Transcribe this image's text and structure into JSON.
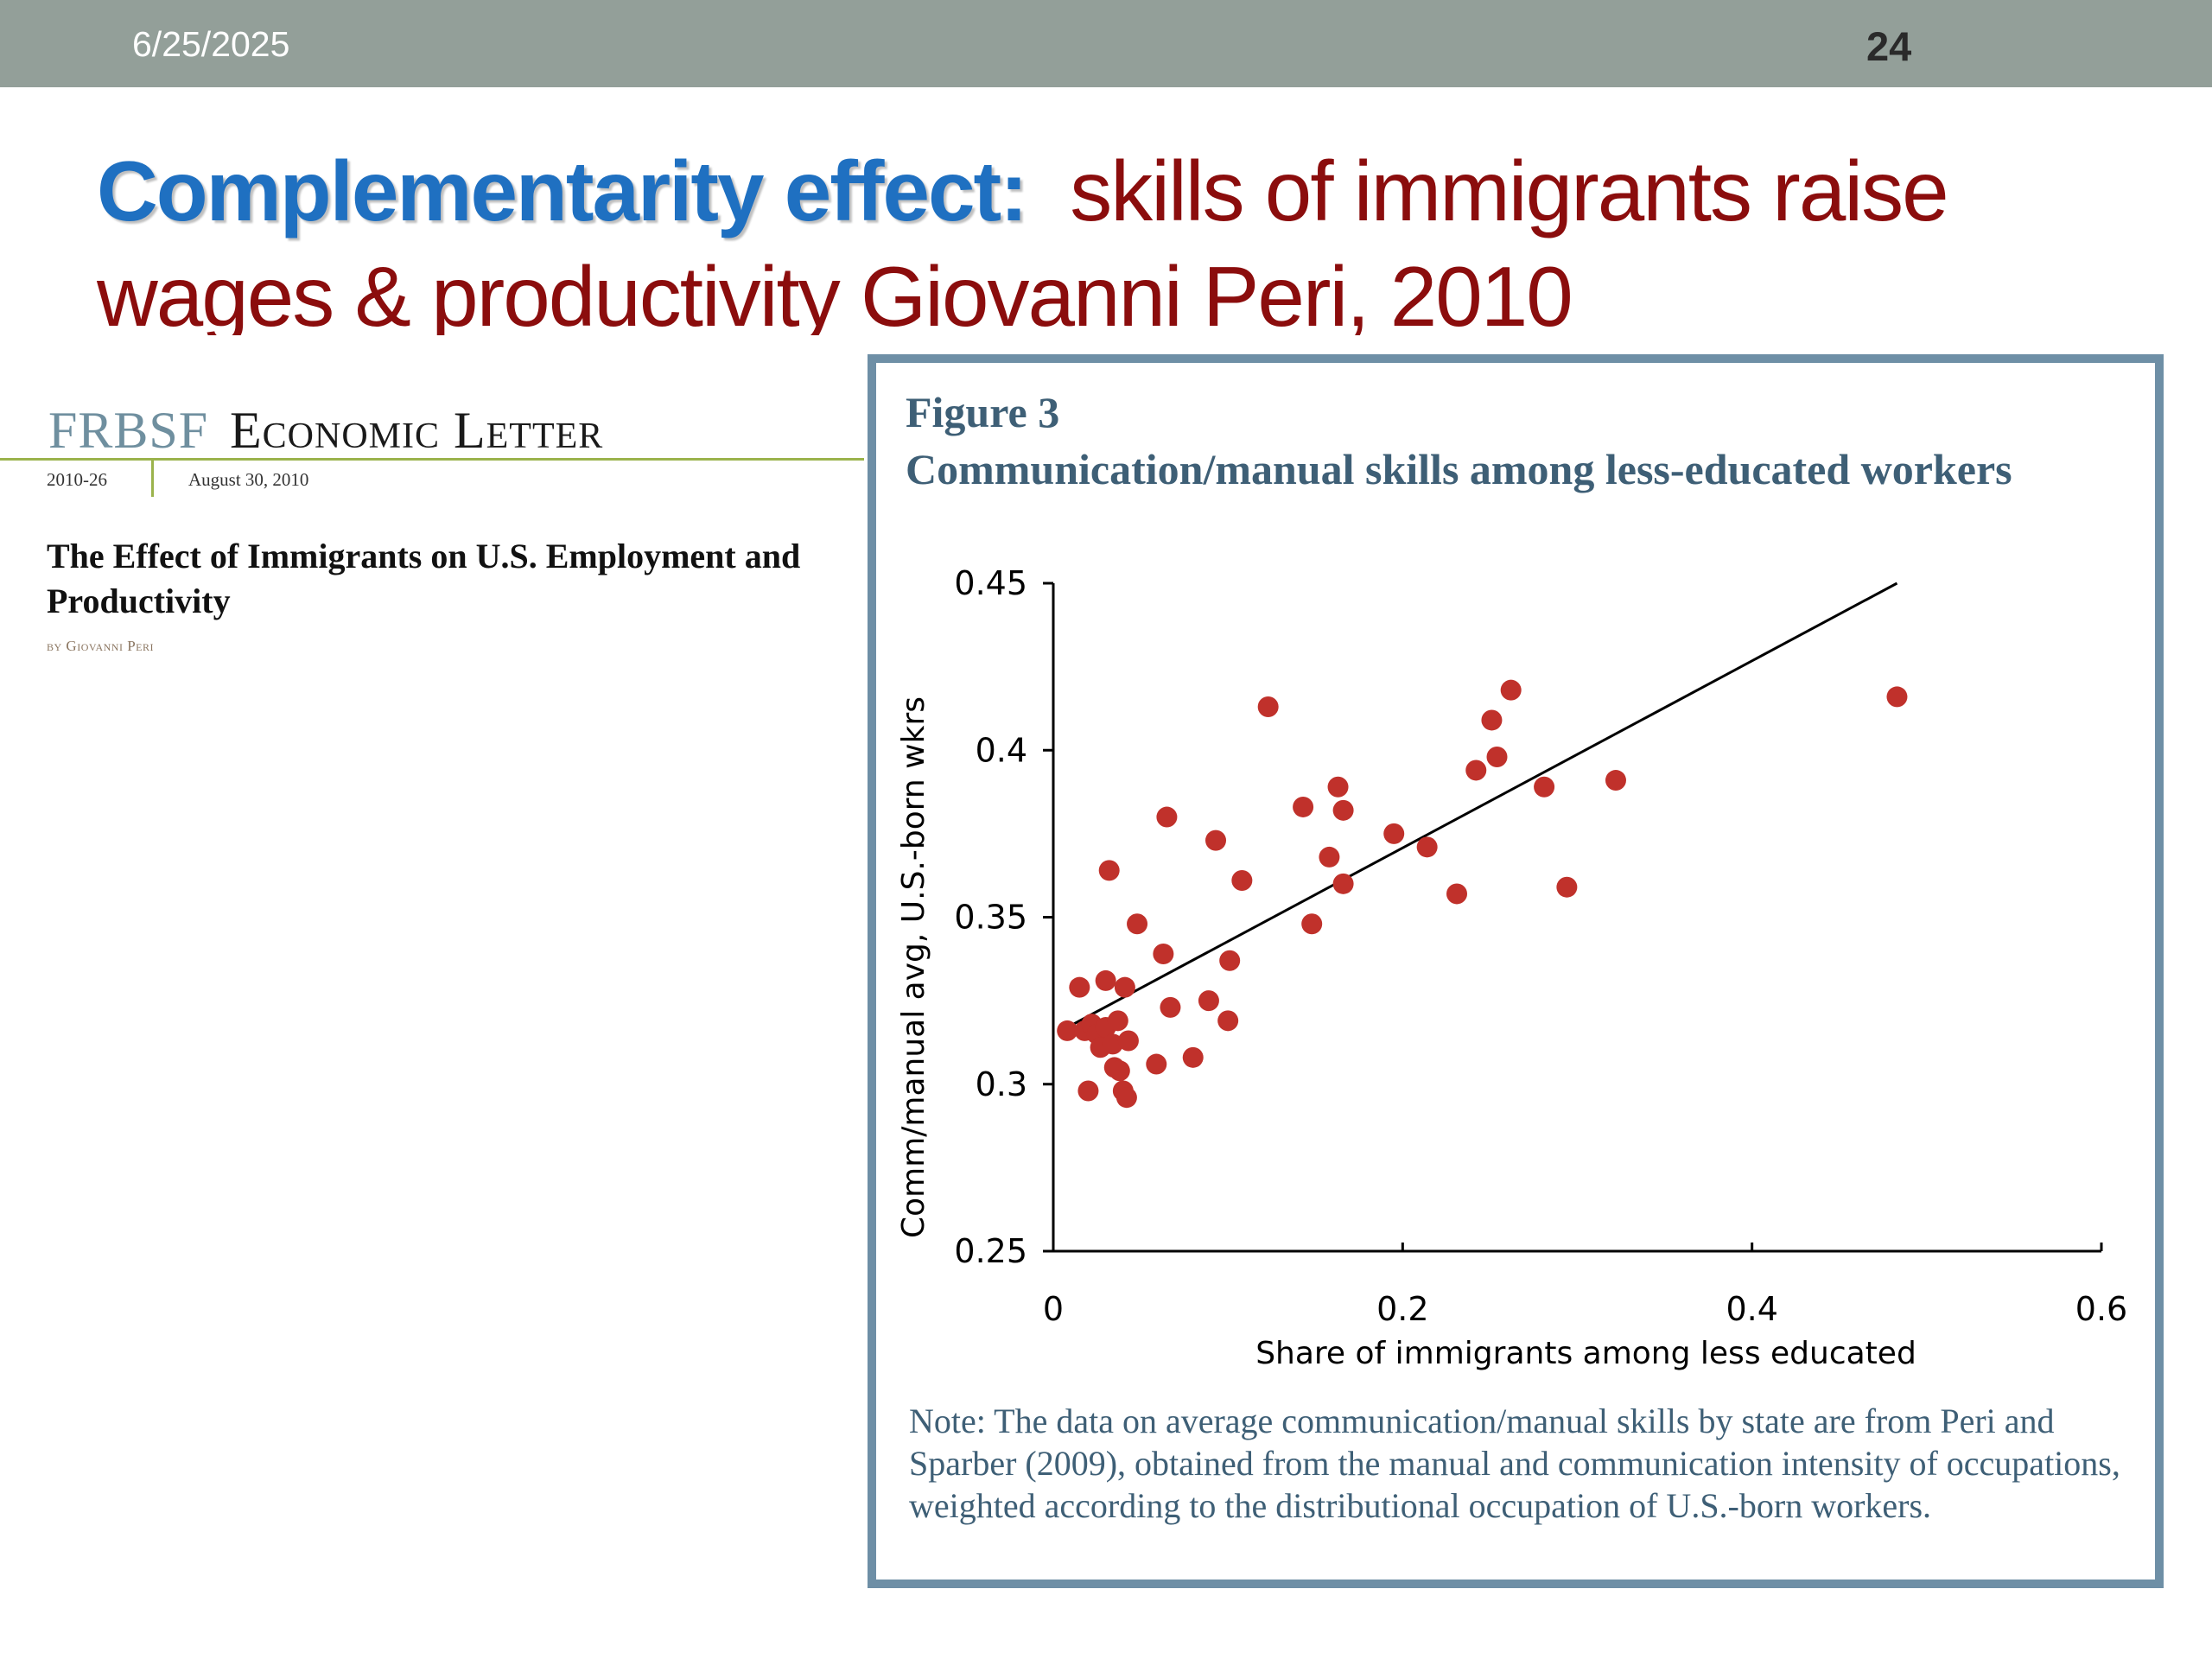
{
  "header": {
    "date": "6/25/2025",
    "page_number": "24"
  },
  "title": {
    "lead": "Complementarity effect:",
    "rest": "skills of immigrants raise wages & productivity Giovanni Peri, 2010"
  },
  "letter": {
    "brand_frbsf": "FRBSF",
    "brand_econ": "Economic Letter",
    "issue": "2010-26",
    "date": "August 30, 2010",
    "article_title": "The Effect of Immigrants on U.S. Employment and Productivity",
    "byline": "by Giovanni Peri"
  },
  "figure": {
    "number": "Figure 3",
    "title": "Communication/manual skills among less-educated workers",
    "note": "Note: The data on average communication/manual skills by state are from Peri and Sparber (2009), obtained from the manual and communication intensity of occupations, weighted according to the distributional occupation of U.S.-born workers."
  },
  "colors": {
    "accent_blue": "#1f70c1",
    "dark_red": "#8b0d0d",
    "point_red": "#c0312b",
    "frame_blue": "#6e8fa6",
    "figure_text": "#3e5f76"
  },
  "chart_data": {
    "type": "scatter",
    "title": "Communication/manual skills among less-educated workers",
    "xlabel": "Share of immigrants among less educated",
    "ylabel": "Comm/manual avg, U.S.-born wkrs",
    "xlim": [
      0,
      0.6
    ],
    "ylim": [
      0.25,
      0.45
    ],
    "xticks": [
      0,
      0.2,
      0.4,
      0.6
    ],
    "xtick_labels": [
      "0",
      "0.2",
      "0.4",
      "0.6"
    ],
    "yticks": [
      0.25,
      0.3,
      0.35,
      0.4,
      0.45
    ],
    "ytick_labels": [
      "0.25",
      "0.3",
      "0.35",
      "0.4",
      "0.45"
    ],
    "points": [
      [
        0.008,
        0.316
      ],
      [
        0.015,
        0.329
      ],
      [
        0.018,
        0.316
      ],
      [
        0.02,
        0.298
      ],
      [
        0.022,
        0.318
      ],
      [
        0.025,
        0.315
      ],
      [
        0.027,
        0.311
      ],
      [
        0.03,
        0.317
      ],
      [
        0.03,
        0.331
      ],
      [
        0.032,
        0.364
      ],
      [
        0.034,
        0.312
      ],
      [
        0.035,
        0.305
      ],
      [
        0.037,
        0.319
      ],
      [
        0.038,
        0.304
      ],
      [
        0.04,
        0.298
      ],
      [
        0.041,
        0.329
      ],
      [
        0.042,
        0.296
      ],
      [
        0.043,
        0.313
      ],
      [
        0.048,
        0.348
      ],
      [
        0.059,
        0.306
      ],
      [
        0.063,
        0.339
      ],
      [
        0.065,
        0.38
      ],
      [
        0.067,
        0.323
      ],
      [
        0.08,
        0.308
      ],
      [
        0.089,
        0.325
      ],
      [
        0.093,
        0.373
      ],
      [
        0.1,
        0.319
      ],
      [
        0.101,
        0.337
      ],
      [
        0.108,
        0.361
      ],
      [
        0.123,
        0.413
      ],
      [
        0.143,
        0.383
      ],
      [
        0.148,
        0.348
      ],
      [
        0.158,
        0.368
      ],
      [
        0.163,
        0.389
      ],
      [
        0.166,
        0.382
      ],
      [
        0.166,
        0.36
      ],
      [
        0.195,
        0.375
      ],
      [
        0.214,
        0.371
      ],
      [
        0.231,
        0.357
      ],
      [
        0.242,
        0.394
      ],
      [
        0.251,
        0.409
      ],
      [
        0.254,
        0.398
      ],
      [
        0.262,
        0.418
      ],
      [
        0.281,
        0.389
      ],
      [
        0.294,
        0.359
      ],
      [
        0.322,
        0.391
      ],
      [
        0.483,
        0.416
      ]
    ],
    "trendline": {
      "x": [
        0.008,
        0.483
      ],
      "y": [
        0.317,
        0.45
      ]
    }
  }
}
